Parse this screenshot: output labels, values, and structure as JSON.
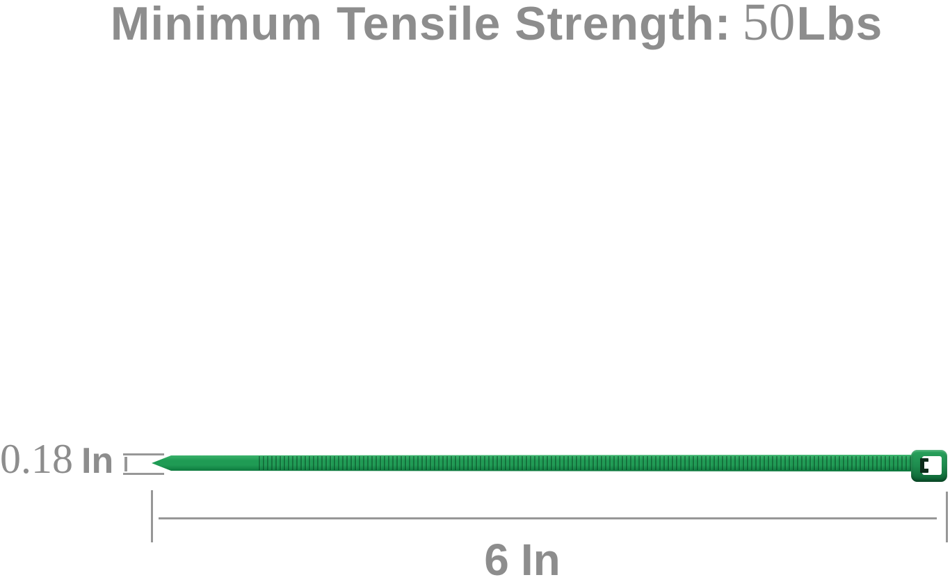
{
  "product_diagram": {
    "title": {
      "label": "Minimum Tensile Strength:",
      "value": "50",
      "unit": "Lbs"
    },
    "width_dimension": {
      "value": "0.18",
      "unit": "In"
    },
    "length_dimension": {
      "value": "6",
      "unit": "In"
    }
  },
  "colors": {
    "text_gray": "#8d8d8d",
    "line_gray": "#979797",
    "tie_green": "#1f9b54",
    "tie_green_light": "#3eb56e",
    "tie_green_dark": "#0c763c",
    "rib_dark": "#10713d",
    "head_green": "#1e8c4e",
    "head_green_dark": "#0c5f32",
    "pawl_dark": "#0d2c1b",
    "slot_white": "#ffffff"
  }
}
